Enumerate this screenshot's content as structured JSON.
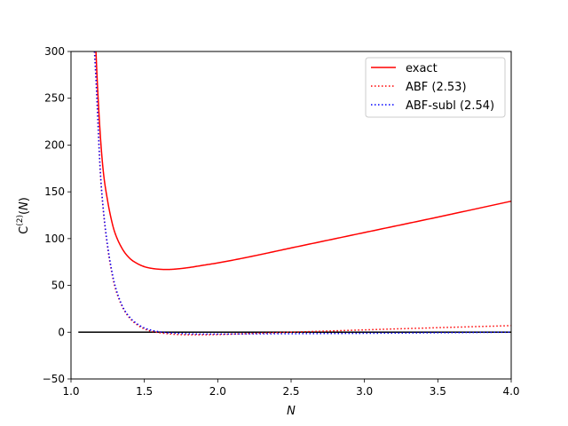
{
  "chart_data": {
    "type": "line",
    "xlabel": "N",
    "ylabel": "C^(2)(N)",
    "xlim": [
      1.0,
      4.0
    ],
    "ylim": [
      -50,
      300
    ],
    "xticks": [
      1.0,
      1.5,
      2.0,
      2.5,
      3.0,
      3.5,
      4.0
    ],
    "xtick_labels": [
      "1.0",
      "1.5",
      "2.0",
      "2.5",
      "3.0",
      "3.5",
      "4.0"
    ],
    "yticks": [
      -50,
      0,
      50,
      100,
      150,
      200,
      250,
      300
    ],
    "ytick_labels": [
      "−50",
      "0",
      "50",
      "100",
      "150",
      "200",
      "250",
      "300"
    ],
    "grid": false,
    "legend_position": "top-right",
    "hlines": [
      {
        "y": 0,
        "xmin": 1.05,
        "xmax": 4.0,
        "color": "#000000"
      }
    ],
    "series": [
      {
        "name": "exact",
        "color": "#ff0000",
        "style": "solid",
        "x": [
          1.17,
          1.18,
          1.2,
          1.22,
          1.25,
          1.28,
          1.3,
          1.35,
          1.4,
          1.45,
          1.5,
          1.55,
          1.6,
          1.65,
          1.7,
          1.8,
          1.9,
          2.0,
          2.2,
          2.5,
          3.0,
          3.5,
          4.0
        ],
        "y": [
          300,
          265,
          210,
          172,
          140,
          117,
          106,
          89,
          79,
          73.5,
          70,
          68.2,
          67.3,
          67,
          67.3,
          69,
          71.5,
          74,
          80,
          90,
          106.5,
          123,
          140
        ]
      },
      {
        "name": "ABF (2.53)",
        "color": "#ff0000",
        "style": "dotted",
        "x": [
          1.16,
          1.17,
          1.2,
          1.22,
          1.25,
          1.28,
          1.3,
          1.35,
          1.4,
          1.45,
          1.5,
          1.55,
          1.6,
          1.65,
          1.7,
          1.8,
          1.9,
          2.0,
          2.2,
          2.5,
          3.0,
          3.5,
          4.0
        ],
        "y": [
          300,
          270,
          170,
          130,
          90,
          62,
          48,
          27,
          15,
          8,
          3.5,
          1,
          -0.5,
          -1.5,
          -2.2,
          -2.8,
          -2.8,
          -2.5,
          -1.5,
          0,
          2.5,
          4.8,
          7
        ]
      },
      {
        "name": "ABF-subl (2.54)",
        "color": "#0000ff",
        "style": "dotted",
        "x": [
          1.16,
          1.17,
          1.2,
          1.22,
          1.25,
          1.28,
          1.3,
          1.35,
          1.4,
          1.45,
          1.5,
          1.55,
          1.6,
          1.65,
          1.7,
          1.8,
          1.9,
          2.0,
          2.2,
          2.5,
          3.0,
          3.5,
          4.0
        ],
        "y": [
          300,
          272,
          172,
          132,
          92,
          64,
          50,
          28,
          16,
          9,
          4.5,
          2,
          0.5,
          -0.5,
          -1,
          -1.7,
          -2,
          -2,
          -1.8,
          -1.6,
          -1.2,
          -0.6,
          0
        ]
      }
    ]
  }
}
